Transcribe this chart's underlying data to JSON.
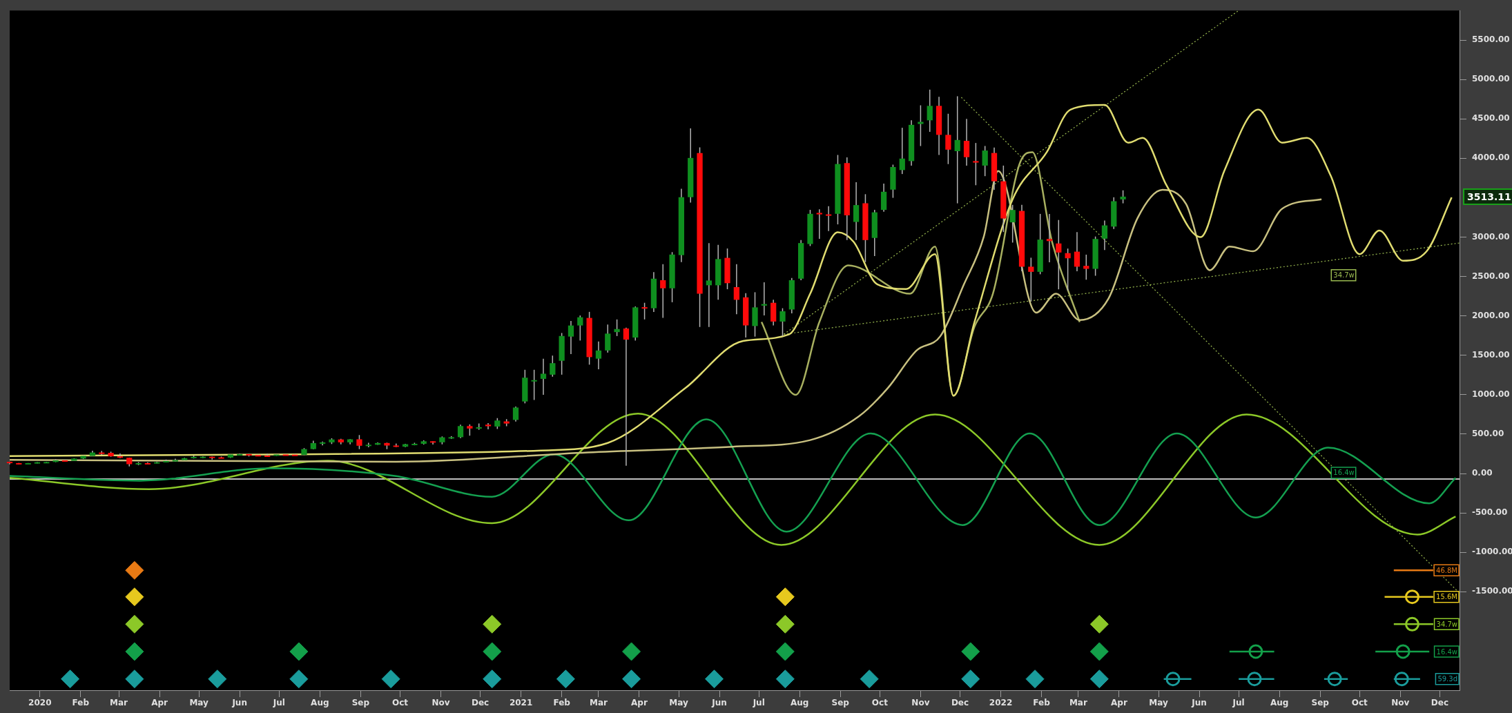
{
  "chart_data": {
    "type": "candlestick",
    "x": [
      "2019-12-09",
      "2019-12-16",
      "2019-12-23",
      "2019-12-30",
      "2020-01-06",
      "2020-01-13",
      "2020-01-20",
      "2020-01-27",
      "2020-02-03",
      "2020-02-10",
      "2020-02-17",
      "2020-02-24",
      "2020-03-02",
      "2020-03-09",
      "2020-03-16",
      "2020-03-23",
      "2020-03-30",
      "2020-04-06",
      "2020-04-13",
      "2020-04-20",
      "2020-04-27",
      "2020-05-04",
      "2020-05-11",
      "2020-05-18",
      "2020-05-25",
      "2020-06-01",
      "2020-06-08",
      "2020-06-15",
      "2020-06-22",
      "2020-06-29",
      "2020-07-06",
      "2020-07-13",
      "2020-07-20",
      "2020-07-27",
      "2020-08-03",
      "2020-08-10",
      "2020-08-17",
      "2020-08-24",
      "2020-08-31",
      "2020-09-07",
      "2020-09-14",
      "2020-09-21",
      "2020-09-28",
      "2020-10-05",
      "2020-10-12",
      "2020-10-19",
      "2020-10-26",
      "2020-11-02",
      "2020-11-09",
      "2020-11-16",
      "2020-11-23",
      "2020-11-30",
      "2020-12-07",
      "2020-12-14",
      "2020-12-21",
      "2020-12-28",
      "2021-01-04",
      "2021-01-11",
      "2021-01-18",
      "2021-01-25",
      "2021-02-01",
      "2021-02-08",
      "2021-02-15",
      "2021-02-22",
      "2021-03-01",
      "2021-03-08",
      "2021-03-15",
      "2021-03-22",
      "2021-03-29",
      "2021-04-05",
      "2021-04-12",
      "2021-04-19",
      "2021-04-26",
      "2021-05-03",
      "2021-05-10",
      "2021-05-17",
      "2021-05-24",
      "2021-05-31",
      "2021-06-07",
      "2021-06-14",
      "2021-06-21",
      "2021-06-28",
      "2021-07-05",
      "2021-07-12",
      "2021-07-19",
      "2021-07-26",
      "2021-08-02",
      "2021-08-09",
      "2021-08-16",
      "2021-08-23",
      "2021-08-30",
      "2021-09-06",
      "2021-09-13",
      "2021-09-20",
      "2021-09-27",
      "2021-10-04",
      "2021-10-11",
      "2021-10-18",
      "2021-10-25",
      "2021-11-01",
      "2021-11-08",
      "2021-11-15",
      "2021-11-22",
      "2021-11-29",
      "2021-12-06",
      "2021-12-13",
      "2021-12-20",
      "2021-12-27",
      "2022-01-03",
      "2022-01-10",
      "2022-01-17",
      "2022-01-24",
      "2022-01-31",
      "2022-02-07",
      "2022-02-14",
      "2022-02-21",
      "2022-02-28",
      "2022-03-07",
      "2022-03-14",
      "2022-03-21",
      "2022-03-28",
      "2022-04-04"
    ],
    "ohlc": [
      [
        148,
        152,
        117,
        132
      ],
      [
        132,
        134,
        116,
        127
      ],
      [
        127,
        133,
        124,
        132
      ],
      [
        132,
        145,
        126,
        143
      ],
      [
        143,
        148,
        135,
        146
      ],
      [
        146,
        180,
        144,
        167
      ],
      [
        167,
        172,
        152,
        161
      ],
      [
        161,
        192,
        159,
        189
      ],
      [
        189,
        229,
        184,
        223
      ],
      [
        223,
        288,
        220,
        266
      ],
      [
        266,
        286,
        236,
        262
      ],
      [
        262,
        277,
        212,
        218
      ],
      [
        218,
        254,
        196,
        200
      ],
      [
        200,
        202,
        90,
        118
      ],
      [
        118,
        145,
        106,
        132
      ],
      [
        132,
        143,
        125,
        130
      ],
      [
        130,
        150,
        127,
        143
      ],
      [
        143,
        177,
        140,
        158
      ],
      [
        158,
        188,
        150,
        170
      ],
      [
        170,
        200,
        167,
        194
      ],
      [
        194,
        227,
        190,
        211
      ],
      [
        211,
        216,
        192,
        213
      ],
      [
        213,
        215,
        178,
        205
      ],
      [
        205,
        215,
        196,
        202
      ],
      [
        202,
        245,
        198,
        241
      ],
      [
        241,
        251,
        228,
        246
      ],
      [
        246,
        250,
        216,
        234
      ],
      [
        234,
        239,
        224,
        228
      ],
      [
        228,
        249,
        221,
        225
      ],
      [
        225,
        245,
        224,
        241
      ],
      [
        241,
        246,
        237,
        239
      ],
      [
        239,
        247,
        228,
        237
      ],
      [
        237,
        322,
        234,
        310
      ],
      [
        310,
        415,
        306,
        386
      ],
      [
        386,
        405,
        356,
        395
      ],
      [
        395,
        447,
        374,
        432
      ],
      [
        432,
        440,
        369,
        395
      ],
      [
        395,
        435,
        370,
        434
      ],
      [
        434,
        488,
        309,
        352
      ],
      [
        352,
        390,
        332,
        365
      ],
      [
        365,
        395,
        364,
        387
      ],
      [
        387,
        391,
        309,
        355
      ],
      [
        355,
        380,
        335,
        340
      ],
      [
        340,
        377,
        335,
        372
      ],
      [
        372,
        390,
        358,
        377
      ],
      [
        377,
        421,
        368,
        409
      ],
      [
        409,
        410,
        368,
        396
      ],
      [
        396,
        470,
        370,
        459
      ],
      [
        459,
        474,
        439,
        461
      ],
      [
        461,
        620,
        448,
        602
      ],
      [
        602,
        623,
        480,
        571
      ],
      [
        571,
        635,
        555,
        587
      ],
      [
        620,
        640,
        560,
        600
      ],
      [
        596,
        703,
        565,
        672
      ],
      [
        661,
        690,
        600,
        634
      ],
      [
        680,
        850,
        660,
        837
      ],
      [
        914,
        1316,
        890,
        1216
      ],
      [
        1170,
        1316,
        933,
        1185
      ],
      [
        1201,
        1457,
        998,
        1266
      ],
      [
        1254,
        1496,
        1228,
        1400
      ],
      [
        1430,
        1783,
        1254,
        1745
      ],
      [
        1737,
        1936,
        1515,
        1878
      ],
      [
        1878,
        2005,
        1687,
        1982
      ],
      [
        1974,
        2051,
        1381,
        1477
      ],
      [
        1457,
        1676,
        1323,
        1561
      ],
      [
        1561,
        1890,
        1534,
        1775
      ],
      [
        1794,
        1955,
        1744,
        1833
      ],
      [
        1840,
        1850,
        98,
        1699
      ],
      [
        1725,
        2120,
        1687,
        2108
      ],
      [
        2110,
        2166,
        1955,
        2100
      ],
      [
        2097,
        2556,
        2050,
        2472
      ],
      [
        2453,
        2656,
        1974,
        2350
      ],
      [
        2350,
        2809,
        2173,
        2778
      ],
      [
        2771,
        3613,
        2683,
        3506
      ],
      [
        3506,
        4379,
        3437,
        4004
      ],
      [
        4065,
        4138,
        1859,
        2281
      ],
      [
        2388,
        2924,
        1859,
        2449
      ],
      [
        2388,
        2901,
        2204,
        2721
      ],
      [
        2736,
        2855,
        2338,
        2415
      ],
      [
        2365,
        2656,
        2020,
        2204
      ],
      [
        2235,
        2288,
        1725,
        1879
      ],
      [
        1871,
        2300,
        1737,
        2108
      ],
      [
        2130,
        2426,
        2005,
        2150
      ],
      [
        2166,
        2204,
        1878,
        1928
      ],
      [
        1928,
        2097,
        1744,
        2058
      ],
      [
        2081,
        2480,
        2032,
        2453
      ],
      [
        2472,
        2962,
        2453,
        2924
      ],
      [
        2912,
        3345,
        2886,
        3295
      ],
      [
        3307,
        3353,
        2977,
        3288
      ],
      [
        3288,
        3391,
        3077,
        3276
      ],
      [
        3295,
        4042,
        3161,
        3927
      ],
      [
        3939,
        4011,
        2962,
        3276
      ],
      [
        3192,
        3697,
        2962,
        3406
      ],
      [
        3429,
        3544,
        2683,
        2962
      ],
      [
        2989,
        3345,
        2759,
        3314
      ],
      [
        3345,
        3678,
        3322,
        3575
      ],
      [
        3602,
        3919,
        3498,
        3889
      ],
      [
        3850,
        4387,
        3800,
        3996
      ],
      [
        3964,
        4481,
        3907,
        4424
      ],
      [
        4435,
        4672,
        4155,
        4462
      ],
      [
        4481,
        4871,
        4335,
        4665
      ],
      [
        4665,
        4780,
        4041,
        4297
      ],
      [
        4297,
        4565,
        3926,
        4109
      ],
      [
        4090,
        4787,
        3428,
        4232
      ],
      [
        4221,
        4500,
        3907,
        4014
      ],
      [
        3964,
        4194,
        3658,
        3945
      ],
      [
        3907,
        4156,
        3773,
        4098
      ],
      [
        4067,
        4136,
        3600,
        3708
      ],
      [
        3708,
        3907,
        3064,
        3236
      ],
      [
        3187,
        3409,
        2930,
        3344
      ],
      [
        3332,
        3409,
        2566,
        2624
      ],
      [
        2624,
        2738,
        2184,
        2559
      ],
      [
        2559,
        3294,
        2528,
        2968
      ],
      [
        2976,
        3294,
        2681,
        2949
      ],
      [
        2919,
        3217,
        2337,
        2804
      ],
      [
        2796,
        2854,
        2318,
        2731
      ],
      [
        2815,
        3064,
        2566,
        2624
      ],
      [
        2635,
        2777,
        2459,
        2597
      ],
      [
        2597,
        3007,
        2509,
        2976
      ],
      [
        2980,
        3210,
        2835,
        3148
      ],
      [
        3133,
        3505,
        3102,
        3455
      ],
      [
        3478,
        3593,
        3428,
        3513.11
      ]
    ],
    "colors": [
      "#ff0a0a",
      "#ff0a0a",
      "#0f8f1f",
      "#0f8f1f",
      "#0f8f1f",
      "#0f8f1f",
      "#ff0a0a",
      "#0f8f1f",
      "#0f8f1f",
      "#0f8f1f",
      "#ff0a0a",
      "#ff0a0a",
      "#ff0a0a",
      "#ff0a0a",
      "#0f8f1f",
      "#ff0a0a",
      "#0f8f1f",
      "#0f8f1f",
      "#0f8f1f",
      "#0f8f1f",
      "#0f8f1f",
      "#0f8f1f",
      "#ff0a0a",
      "#ff0a0a",
      "#0f8f1f",
      "#0f8f1f",
      "#ff0a0a",
      "#ff0a0a",
      "#ff0a0a",
      "#0f8f1f",
      "#ff0a0a",
      "#ff0a0a",
      "#0f8f1f",
      "#0f8f1f",
      "#0f8f1f",
      "#0f8f1f",
      "#ff0a0a",
      "#0f8f1f",
      "#ff0a0a",
      "#0f8f1f",
      "#0f8f1f",
      "#ff0a0a",
      "#ff0a0a",
      "#0f8f1f",
      "#0f8f1f",
      "#0f8f1f",
      "#ff0a0a",
      "#0f8f1f",
      "#0f8f1f",
      "#0f8f1f",
      "#ff0a0a",
      "#0f8f1f",
      "#ff0a0a",
      "#0f8f1f",
      "#ff0a0a",
      "#0f8f1f",
      "#0f8f1f",
      "#0f8f1f",
      "#0f8f1f",
      "#0f8f1f",
      "#0f8f1f",
      "#0f8f1f",
      "#0f8f1f",
      "#ff0a0a",
      "#0f8f1f",
      "#0f8f1f",
      "#0f8f1f",
      "#ff0a0a",
      "#0f8f1f",
      "#ff0a0a",
      "#0f8f1f",
      "#ff0a0a",
      "#0f8f1f",
      "#0f8f1f",
      "#0f8f1f",
      "#ff0a0a",
      "#0f8f1f",
      "#0f8f1f",
      "#ff0a0a",
      "#ff0a0a",
      "#ff0a0a",
      "#0f8f1f",
      "#0f8f1f",
      "#ff0a0a",
      "#0f8f1f",
      "#0f8f1f",
      "#0f8f1f",
      "#0f8f1f",
      "#ff0a0a",
      "#ff0a0a",
      "#0f8f1f",
      "#ff0a0a",
      "#0f8f1f",
      "#ff0a0a",
      "#0f8f1f",
      "#0f8f1f",
      "#0f8f1f",
      "#0f8f1f",
      "#0f8f1f",
      "#0f8f1f",
      "#0f8f1f",
      "#ff0a0a",
      "#ff0a0a",
      "#0f8f1f",
      "#ff0a0a",
      "#ff0a0a",
      "#0f8f1f",
      "#ff0a0a",
      "#ff0a0a",
      "#0f8f1f",
      "#ff0a0a",
      "#ff0a0a",
      "#0f8f1f",
      "#ff0a0a",
      "#ff0a0a",
      "#ff0a0a",
      "#ff0a0a",
      "#ff0a0a",
      "#0f8f1f",
      "#0f8f1f",
      "#0f8f1f",
      "#0f8f1f"
    ],
    "marker": "none",
    "series": [
      {
        "type": "line",
        "color": "#e0dc70",
        "x": [
          "2019-12-09",
          "2020-07-16",
          "2021-01-16",
          "2021-03-08",
          "2021-05-06",
          "2021-06-19",
          "2021-07-24",
          "2021-08-09",
          "2021-08-30",
          "2021-09-11",
          "2021-09-29",
          "2021-10-21",
          "2021-11-12",
          "2021-11-26",
          "2021-12-12",
          "2022-01-10",
          "2022-02-05",
          "2022-02-23",
          "2022-03-21",
          "2022-04-08",
          "2022-04-19",
          "2022-05-07",
          "2022-06-02",
          "2022-06-20",
          "2022-07-16",
          "2022-08-03",
          "2022-08-22",
          "2022-09-09",
          "2022-10-01",
          "2022-10-16",
          "2022-11-03",
          "2022-11-21",
          "2022-12-10"
        ],
        "values": [
          221,
          244,
          292,
          388,
          1083,
          1682,
          1766,
          2281,
          3060,
          2940,
          2401,
          2341,
          2784,
          987,
          1922,
          3479,
          4078,
          4617,
          4677,
          4198,
          4258,
          3659,
          3000,
          3838,
          4617,
          4198,
          4258,
          3779,
          2784,
          3084,
          2700,
          2820,
          3503
        ]
      },
      {
        "type": "line",
        "color": "#c8c080",
        "x": [
          "2019-12-09",
          "2020-09-28",
          "2021-02-21",
          "2021-06-11",
          "2021-08-09",
          "2021-09-15",
          "2021-10-07",
          "2021-10-29",
          "2021-11-16",
          "2021-12-04",
          "2021-12-19",
          "2021-12-30",
          "2022-01-17",
          "2022-01-28",
          "2022-02-12",
          "2022-03-02",
          "2022-03-24",
          "2022-04-15",
          "2022-05-04",
          "2022-05-22",
          "2022-06-09",
          "2022-06-24",
          "2022-07-12",
          "2022-08-03",
          "2022-09-02"
        ],
        "values": [
          173,
          149,
          268,
          340,
          424,
          724,
          1083,
          1562,
          1742,
          2401,
          3000,
          3838,
          null,
          2041,
          2281,
          1946,
          2221,
          3239,
          3599,
          3419,
          2580,
          2880,
          2820,
          3359,
          3479
        ]
      },
      {
        "type": "line",
        "color": "#a8b060",
        "x": [
          "2021-07-03",
          "2021-07-29",
          "2021-08-16",
          "2021-09-07",
          "2021-10-24",
          "2021-11-12",
          "2021-11-26",
          "2021-12-12",
          "2021-12-26",
          "2022-01-16",
          "2022-01-25",
          "2022-02-09",
          "2022-03-02"
        ],
        "values": [
          1922,
          999,
          1922,
          2641,
          2281,
          2880,
          987,
          1862,
          2281,
          3958,
          4078,
          2940,
          1922
        ]
      },
      {
        "type": "line",
        "name": "16.4w",
        "color": "#14a050",
        "x": [
          "2019-12-09",
          "2020-03-17",
          "2020-06-24",
          "2020-09-27",
          "2020-12-10",
          "2021-01-26",
          "2021-03-24",
          "2021-05-22",
          "2021-07-22",
          "2021-09-24",
          "2021-12-03",
          "2022-01-23",
          "2022-03-17",
          "2022-05-15",
          "2022-07-14",
          "2022-09-07",
          "2022-11-23",
          "2022-12-13"
        ],
        "values": [
          -31,
          -91,
          65,
          -31,
          -295,
          244,
          -594,
          688,
          -738,
          508,
          -654,
          508,
          -654,
          508,
          -558,
          328,
          -379,
          -55
        ]
      },
      {
        "type": "line",
        "color": "#8cc828",
        "x": [
          "2019-12-09",
          "2020-03-24",
          "2020-08-07",
          "2020-12-10",
          "2021-03-31",
          "2021-07-18",
          "2021-11-12",
          "2022-03-17",
          "2022-07-07",
          "2022-11-14",
          "2022-12-13"
        ],
        "values": [
          -55,
          -199,
          161,
          -630,
          760,
          -906,
          748,
          -906,
          748,
          -774,
          -546
        ]
      },
      {
        "type": "line",
        "color": "#9aba50",
        "line_style": "dotted",
        "x": [
          "2021-07-20",
          "2022-07-01"
        ],
        "values": [
          1767,
          5875
        ]
      },
      {
        "type": "line",
        "name": "34.7w",
        "color": "#9aba50",
        "line_style": "dotted",
        "x": [
          "2021-07-20",
          "2022-12-16"
        ],
        "values": [
          1767,
          2925
        ]
      },
      {
        "type": "line",
        "color": "#9aba50",
        "line_style": "dotted",
        "x": [
          "2021-12-02",
          "2022-12-16"
        ],
        "values": [
          4773,
          -1518
        ]
      },
      {
        "type": "scatter",
        "color": "#e87a14",
        "marker": "diamond",
        "x": [
          "2020-03-13"
        ],
        "values": [
          -1229
        ]
      },
      {
        "type": "scatter",
        "color": "#e6c81e",
        "marker": "diamond",
        "x": [
          "2020-03-13",
          "2021-07-21"
        ],
        "values": [
          -1565,
          -1565
        ]
      },
      {
        "type": "scatter",
        "color": "#8cc828",
        "marker": "diamond",
        "x": [
          "2020-03-13",
          "2020-12-10",
          "2021-07-21",
          "2022-03-17"
        ],
        "values": [
          -1912,
          -1912,
          -1912,
          -1912
        ]
      },
      {
        "type": "scatter",
        "color": "#13a04a",
        "marker": "diamond",
        "x": [
          "2020-03-13",
          "2020-07-16",
          "2020-12-10",
          "2021-03-26",
          "2021-07-21",
          "2021-12-09",
          "2022-03-17"
        ],
        "values": [
          -2259,
          -2259,
          -2259,
          -2259,
          -2259,
          -2259,
          -2259
        ]
      },
      {
        "type": "scatter",
        "color": "#1a9c9c",
        "marker": "diamond",
        "x": [
          "2020-01-24",
          "2020-03-13",
          "2020-05-15",
          "2020-07-16",
          "2020-09-24",
          "2020-12-10",
          "2021-02-04",
          "2021-03-26",
          "2021-05-28",
          "2021-07-21",
          "2021-09-23",
          "2021-12-09",
          "2022-01-27",
          "2022-03-17"
        ],
        "values": [
          -2607,
          -2607,
          -2607,
          -2607,
          -2607,
          -2607,
          -2607,
          -2607,
          -2607,
          -2607,
          -2607,
          -2607,
          -2607,
          -2607
        ]
      },
      {
        "type": "line",
        "name": "46.8M",
        "color": "#e87a14",
        "x": [
          "2022-10-27",
          "2022-11-26"
        ],
        "values": [
          -1229,
          -1229
        ]
      },
      {
        "type": "line",
        "color": "#e6c81e",
        "x": [
          "2022-10-20",
          "2022-11-26"
        ],
        "values": [
          -1565,
          -1565
        ]
      },
      {
        "type": "line",
        "color": "#8cc828",
        "x": [
          "2022-10-27",
          "2022-11-26"
        ],
        "values": [
          -1912,
          -1912
        ]
      },
      {
        "type": "line",
        "color": "#13a04a",
        "x": [
          "2022-06-24",
          "2022-07-28"
        ],
        "values": [
          -2259,
          -2259
        ]
      },
      {
        "type": "line",
        "name": "16.4w",
        "color": "#13a04a",
        "x": [
          "2022-10-13",
          "2022-11-23"
        ],
        "values": [
          -2259,
          -2259
        ]
      },
      {
        "type": "line",
        "color": "#1a9c9c",
        "x": [
          "2022-05-05",
          "2022-05-26"
        ],
        "values": [
          -2607,
          -2607
        ]
      },
      {
        "type": "line",
        "color": "#1a9c9c",
        "x": [
          "2022-07-01",
          "2022-07-28"
        ],
        "values": [
          -2607,
          -2607
        ]
      },
      {
        "type": "line",
        "color": "#1a9c9c",
        "x": [
          "2022-09-04",
          "2022-09-22"
        ],
        "values": [
          -2607,
          -2607
        ]
      },
      {
        "type": "line",
        "color": "#1a9c9c",
        "x": [
          "2022-10-27",
          "2022-11-16"
        ],
        "values": [
          -2607,
          -2607
        ]
      },
      {
        "type": "scatter",
        "name": "15.6M",
        "color": "#e6c81e",
        "marker": "circle",
        "x": [
          "2022-11-10"
        ],
        "values": [
          -1565
        ]
      },
      {
        "type": "scatter",
        "name": "34.7w",
        "color": "#8cc828",
        "marker": "circle",
        "x": [
          "2022-11-10"
        ],
        "values": [
          -1912
        ]
      },
      {
        "type": "scatter",
        "color": "#13a04a",
        "marker": "circle",
        "x": [
          "2022-07-14",
          "2022-11-03"
        ],
        "values": [
          -2259,
          -2259
        ]
      },
      {
        "type": "scatter",
        "name": "59.3d",
        "color": "#1a9c9c",
        "marker": "circle",
        "x": [
          "2022-05-12",
          "2022-07-13",
          "2022-09-12",
          "2022-11-02"
        ],
        "values": [
          -2607,
          -2607,
          -2607,
          -2607
        ]
      }
    ],
    "ref_lines": [
      {
        "axis": "y",
        "value": -70,
        "color": "#ffffff"
      }
    ],
    "annotations": [
      "3513.11"
    ],
    "xlim": [
      "2019-12-09",
      "2022-12-16"
    ],
    "xticks": [
      {
        "value": "2020-01",
        "label": "2020"
      },
      {
        "value": "2020-02",
        "label": "Feb"
      },
      {
        "value": "2020-03",
        "label": "Mar"
      },
      {
        "value": "2020-04",
        "label": "Apr"
      },
      {
        "value": "2020-05",
        "label": "May"
      },
      {
        "value": "2020-06",
        "label": "Jun"
      },
      {
        "value": "2020-07",
        "label": "Jul"
      },
      {
        "value": "2020-08",
        "label": "Aug"
      },
      {
        "value": "2020-09",
        "label": "Sep"
      },
      {
        "value": "2020-10",
        "label": "Oct"
      },
      {
        "value": "2020-11",
        "label": "Nov"
      },
      {
        "value": "2020-12",
        "label": "Dec"
      },
      {
        "value": "2021-01",
        "label": "2021"
      },
      {
        "value": "2021-02",
        "label": "Feb"
      },
      {
        "value": "2021-03",
        "label": "Mar"
      },
      {
        "value": "2021-04",
        "label": "Apr"
      },
      {
        "value": "2021-05",
        "label": "May"
      },
      {
        "value": "2021-06",
        "label": "Jun"
      },
      {
        "value": "2021-07",
        "label": "Jul"
      },
      {
        "value": "2021-08",
        "label": "Aug"
      },
      {
        "value": "2021-09",
        "label": "Sep"
      },
      {
        "value": "2021-10",
        "label": "Oct"
      },
      {
        "value": "2021-11",
        "label": "Nov"
      },
      {
        "value": "2021-12",
        "label": "Dec"
      },
      {
        "value": "2022-01",
        "label": "2022"
      },
      {
        "value": "2022-02",
        "label": "Feb"
      },
      {
        "value": "2022-03",
        "label": "Mar"
      },
      {
        "value": "2022-04",
        "label": "Apr"
      },
      {
        "value": "2022-05",
        "label": "May"
      },
      {
        "value": "2022-06",
        "label": "Jun"
      },
      {
        "value": "2022-07",
        "label": "Jul"
      },
      {
        "value": "2022-08",
        "label": "Aug"
      },
      {
        "value": "2022-09",
        "label": "Sep"
      },
      {
        "value": "2022-10",
        "label": "Oct"
      },
      {
        "value": "2022-11",
        "label": "Nov"
      },
      {
        "value": "2022-12",
        "label": "Dec"
      }
    ],
    "ylim": [
      -2750,
      5875
    ],
    "yticks": [
      {
        "value": -1500,
        "label": "-1500.00"
      },
      {
        "value": -1000,
        "label": "-1000.00"
      },
      {
        "value": -500,
        "label": "-500.00"
      },
      {
        "value": 0,
        "label": "0.00"
      },
      {
        "value": 500,
        "label": "500.00"
      },
      {
        "value": 1000,
        "label": "1000.00"
      },
      {
        "value": 1500,
        "label": "1500.00"
      },
      {
        "value": 2000,
        "label": "2000.00"
      },
      {
        "value": 2500,
        "label": "2500.00"
      },
      {
        "value": 3000,
        "label": "3000.00"
      },
      {
        "value": 4000,
        "label": "4000.00"
      },
      {
        "value": 4500,
        "label": "4500.00"
      },
      {
        "value": 5000,
        "label": "5000.00"
      },
      {
        "value": 5500,
        "label": "5500.00"
      }
    ]
  }
}
